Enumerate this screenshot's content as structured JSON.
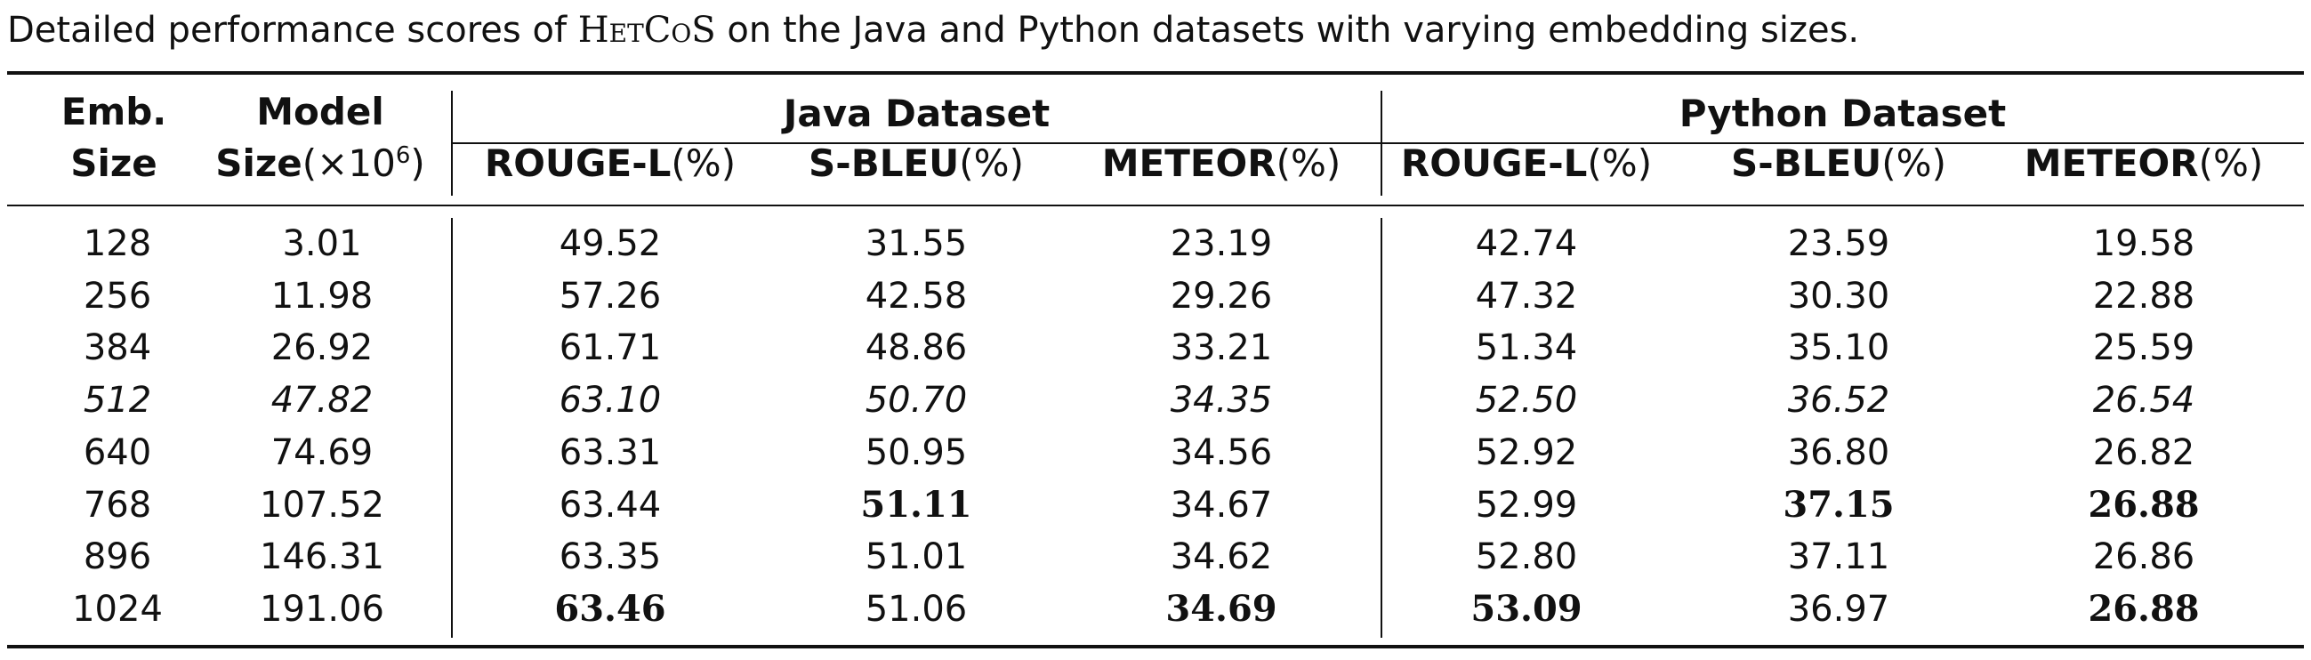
{
  "caption": {
    "before": "Detailed performance scores of ",
    "model_name": "HetCoS",
    "after": " on the Java and Python datasets with varying embedding sizes."
  },
  "header": {
    "emb_size_line1": "Emb.",
    "emb_size_line2": "Size",
    "model_size_line1": "Model",
    "model_size_line2": "Size",
    "model_size_unit": "(×10",
    "model_size_exp": "6",
    "model_size_close": ")",
    "java_group": "Java Dataset",
    "python_group": "Python Dataset",
    "metrics": [
      {
        "name": "ROUGE-L",
        "unit": "(%)"
      },
      {
        "name": "S-BLEU",
        "unit": "(%)"
      },
      {
        "name": "METEOR",
        "unit": "(%)"
      },
      {
        "name": "ROUGE-L",
        "unit": "(%)"
      },
      {
        "name": "S-BLEU",
        "unit": "(%)"
      },
      {
        "name": "METEOR",
        "unit": "(%)"
      }
    ]
  },
  "rows": [
    {
      "emb": "128",
      "size": "3.01",
      "values": [
        "49.52",
        "31.55",
        "23.19",
        "42.74",
        "23.59",
        "19.58"
      ],
      "italic": false,
      "bold": [
        false,
        false,
        false,
        false,
        false,
        false
      ]
    },
    {
      "emb": "256",
      "size": "11.98",
      "values": [
        "57.26",
        "42.58",
        "29.26",
        "47.32",
        "30.30",
        "22.88"
      ],
      "italic": false,
      "bold": [
        false,
        false,
        false,
        false,
        false,
        false
      ]
    },
    {
      "emb": "384",
      "size": "26.92",
      "values": [
        "61.71",
        "48.86",
        "33.21",
        "51.34",
        "35.10",
        "25.59"
      ],
      "italic": false,
      "bold": [
        false,
        false,
        false,
        false,
        false,
        false
      ]
    },
    {
      "emb": "512",
      "size": "47.82",
      "values": [
        "63.10",
        "50.70",
        "34.35",
        "52.50",
        "36.52",
        "26.54"
      ],
      "italic": true,
      "bold": [
        false,
        false,
        false,
        false,
        false,
        false
      ]
    },
    {
      "emb": "640",
      "size": "74.69",
      "values": [
        "63.31",
        "50.95",
        "34.56",
        "52.92",
        "36.80",
        "26.82"
      ],
      "italic": false,
      "bold": [
        false,
        false,
        false,
        false,
        false,
        false
      ]
    },
    {
      "emb": "768",
      "size": "107.52",
      "values": [
        "63.44",
        "51.11",
        "34.67",
        "52.99",
        "37.15",
        "26.88"
      ],
      "italic": false,
      "bold": [
        false,
        true,
        false,
        false,
        true,
        true
      ]
    },
    {
      "emb": "896",
      "size": "146.31",
      "values": [
        "63.35",
        "51.01",
        "34.62",
        "52.80",
        "37.11",
        "26.86"
      ],
      "italic": false,
      "bold": [
        false,
        false,
        false,
        false,
        false,
        false
      ]
    },
    {
      "emb": "1024",
      "size": "191.06",
      "values": [
        "63.46",
        "51.06",
        "34.69",
        "53.09",
        "36.97",
        "26.88"
      ],
      "italic": false,
      "bold": [
        true,
        false,
        true,
        true,
        false,
        true
      ]
    }
  ]
}
